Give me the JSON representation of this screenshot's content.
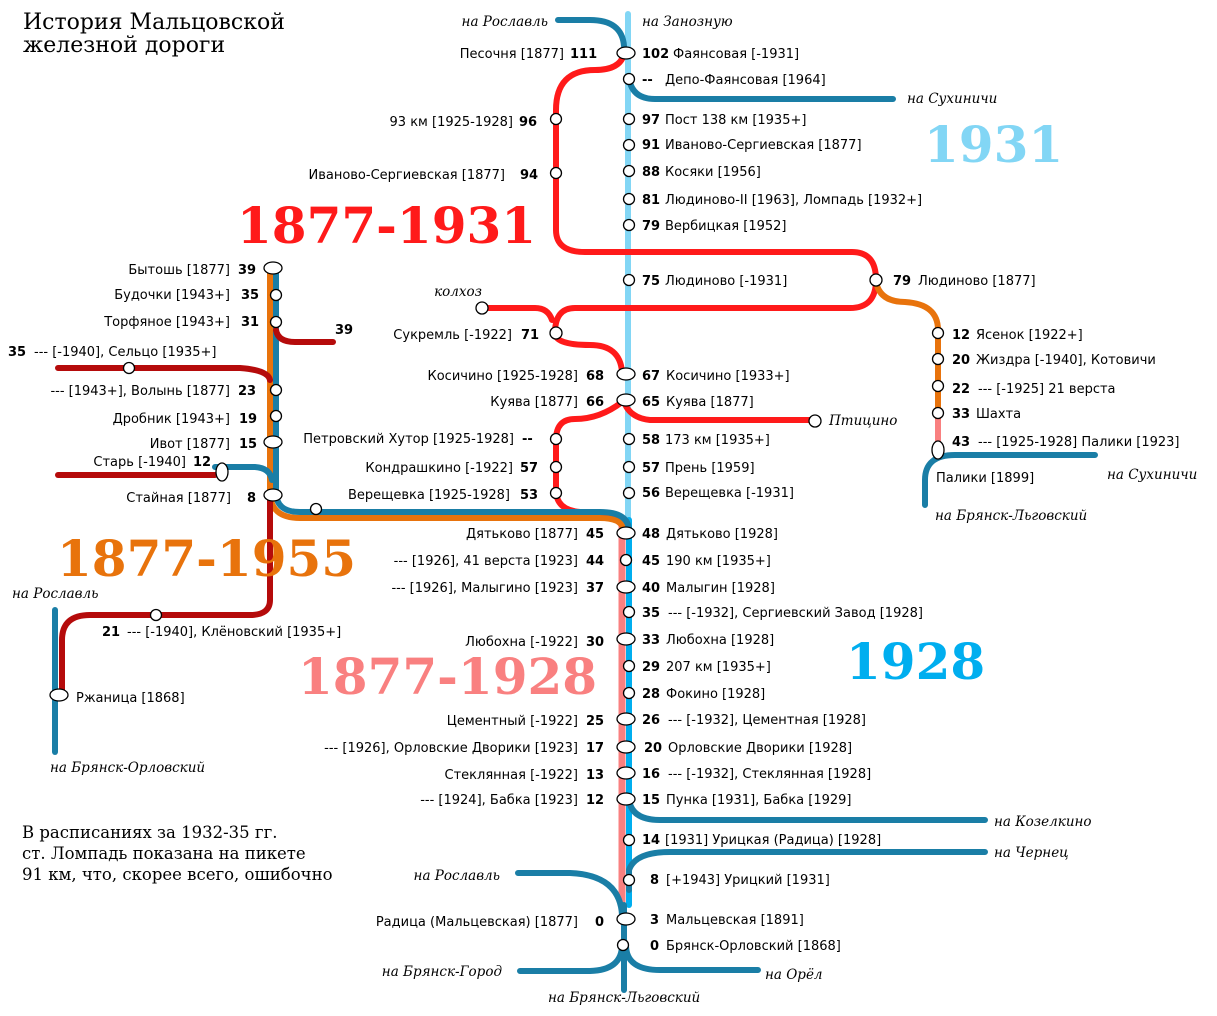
{
  "colors": {
    "red": "#ff1a1a",
    "blue": "#1a7ea6",
    "light_blue": "#82d6f5",
    "sky": "#00aeef",
    "orange": "#e8730c",
    "pink": "#f98080",
    "dark_red": "#b50b0b"
  },
  "title": {
    "line1": "История Мальцовской",
    "line2": "железной дороги"
  },
  "note": {
    "line1": "В расписаниях за 1932-35 гг.",
    "line2": "ст. Ломпадь показана на пикете",
    "line3": "91 км, что, скорее всего, ошибочно"
  },
  "eras": {
    "e1877_1931": "1877-1931",
    "e1931": "1931",
    "e1877_1955": "1877-1955",
    "e1877_1928": "1877-1928",
    "e1928": "1928"
  },
  "directions": {
    "roslavl_top": "на Рославль",
    "zanoznaya": "на Занозную",
    "sukhinichi_top": "на Сухиничи",
    "kolkhoz": "колхоз",
    "ptitsino": "Птицино",
    "sukhinichi_right": "на Сухиничи",
    "bryansk_lgovsky_right": "на Брянск-Льговский",
    "roslavl_left": "на Рославль",
    "bryansk_orlovsky": "на Брянск-Орловский",
    "kozelkino": "на Козелкино",
    "chernets": "на Чернец",
    "roslavl_bottom": "на Рославль",
    "bryansk_gorod": "на Брянск-Город",
    "orel": "на Орёл",
    "bryansk_lgovsky_bottom": "на Брянск-Льговский"
  },
  "stations": {
    "s_1931_top": {
      "faianс_km": "102",
      "faianс_name": "Фаянсовая [-1931]",
      "depo_km": "--",
      "depo_name": "Депо-Фаянсовая [1964]",
      "post138_km": "97",
      "post138_name": "Пост 138 км [1935+]",
      "ivser_km": "91",
      "ivser_name": "Иваново-Сергиевская [1877]",
      "kosyaki_km": "88",
      "kosyaki_name": "Косяки [1956]",
      "lyud2_km": "81",
      "lyud2_name": "Людиново-II [1963], Ломпадь [1932+]",
      "verb_km": "79",
      "verb_name": "Вербицкая  [1952]",
      "lyud_km": "75",
      "lyud_name": "Людиново [-1931]"
    },
    "s_old_top": {
      "pes_name": "Песочня [1877]",
      "pes_km": "111",
      "km93_name": "93 км [1925-1928]",
      "km93_km": "96",
      "ivser_name": "Иваново-Сергиевская [1877]",
      "ivser_km": "94"
    },
    "s_right": {
      "lyud_km": "79",
      "lyud_name": "Людиново [1877]",
      "yas_km": "12",
      "yas_name": "Ясенок [1922+]",
      "zhiz_km": "20",
      "zhiz_name": "Жиздра [-1940], Котовичи",
      "v21_km": "22",
      "v21_name": "--- [-1925] 21 верста",
      "shakh_km": "33",
      "shakh_name": "Шахта",
      "pal_km": "43",
      "pal_name": "--- [1925-1928] Палики [1923]",
      "pal2_name": "Палики [1899]"
    },
    "s_mid": {
      "sukr_name": "Сукремль [-1922]",
      "sukr_km": "71",
      "kos_old_name": "Косичино [1925-1928]",
      "kos_old_km": "68",
      "kos_new_km": "67",
      "kos_new_name": "Косичино [1933+]",
      "kuy_old_name": "Куява [1877]",
      "kuy_old_km": "66",
      "kuy_new_km": "65",
      "kuy_new_name": "Куява [1877]",
      "petr_name": "Петровский Хутор [1925-1928]",
      "petr_km": "--",
      "kondr_name": "Кондрашкино [-1922]",
      "kondr_km": "57",
      "vere_name": "Верещевка [1925-1928]",
      "vere_km": "53",
      "km173_km": "58",
      "km173_name": "173 км [1935+]",
      "pren_km": "57",
      "pren_name": "Прень [1959]",
      "vere2_km": "56",
      "vere2_name": "Верещевка [-1931]"
    },
    "s_left": {
      "byt_name": "Бытошь [1877]",
      "byt_km": "39",
      "bud_name": "Будочки [1943+]",
      "bud_km": "35",
      "torf_name": "Торфяное [1943+]",
      "torf_km": "31",
      "br39_km": "39",
      "selts_km": "35",
      "selts_name": "--- [-1940], Сельцо [1935+]",
      "vol_name": "--- [1943+], Волынь [1877]",
      "vol_km": "23",
      "drob_name": "Дробник [1943+]",
      "drob_km": "19",
      "ivot_name": "Ивот [1877]",
      "ivot_km": "15",
      "star_name": "Старь [-1940]",
      "star_km": "12",
      "stain_name": "Стайная [1877]",
      "stain_km": "8",
      "klen_km": "21",
      "klen_name": "--- [-1940], Клёновский [1935+]",
      "rzh_name": "Ржаница [1868]"
    },
    "s_bottom_left": {
      "dyat_name": "Дятьково [1877]",
      "dyat_km": "45",
      "v41_name": "--- [1926], 41 верста [1923]",
      "v41_km": "44",
      "malyg_name": "--- [1926], Малыгино [1923]",
      "malyg_km": "37",
      "lyub_name": "Любохна [-1922]",
      "lyub_km": "30",
      "cem_name": "Цементный [-1922]",
      "cem_km": "25",
      "orl_name": "--- [1926], Орловские Дворики [1923]",
      "orl_km": "17",
      "stek_name": "Стеклянная [-1922]",
      "stek_km": "13",
      "babka_name": "--- [1924], Бабка [1923]",
      "babka_km": "12",
      "rad_name": "Радица (Мальцевская) [1877]",
      "rad_km": "0"
    },
    "s_bottom_right": {
      "dyat_km": "48",
      "dyat_name": "Дятьково [1928]",
      "km190_km": "45",
      "km190_name": "190 км [1935+]",
      "malyg_km": "40",
      "malyg_name": "Малыгин [1928]",
      "serg_km": "35",
      "serg_name": "--- [-1932], Сергиевский Завод [1928]",
      "lyub_km": "33",
      "lyub_name": "Любохна [1928]",
      "km207_km": "29",
      "km207_name": "207 км [1935+]",
      "fok_km": "28",
      "fok_name": "Фокино [1928]",
      "cem_km": "26",
      "cem_name": "--- [-1932], Цементная [1928]",
      "orl_km": "20",
      "orl_name": "Орловские Дворики [1928]",
      "stek_km": "16",
      "stek_name": "--- [-1932], Стеклянная [1928]",
      "punka_km": "15",
      "punka_name": "Пунка [1931], Бабка [1929]",
      "urits_km": "14",
      "urits_name": "[1931] Урицкая (Радица) [1928]",
      "urits2_km": "8",
      "urits2_name": "[+1943] Урицкий [1931]",
      "malts_km": "3",
      "malts_name": "Мальцевская [1891]",
      "bro_km": "0",
      "bro_name": "Брянск-Орловский [1868]"
    }
  }
}
